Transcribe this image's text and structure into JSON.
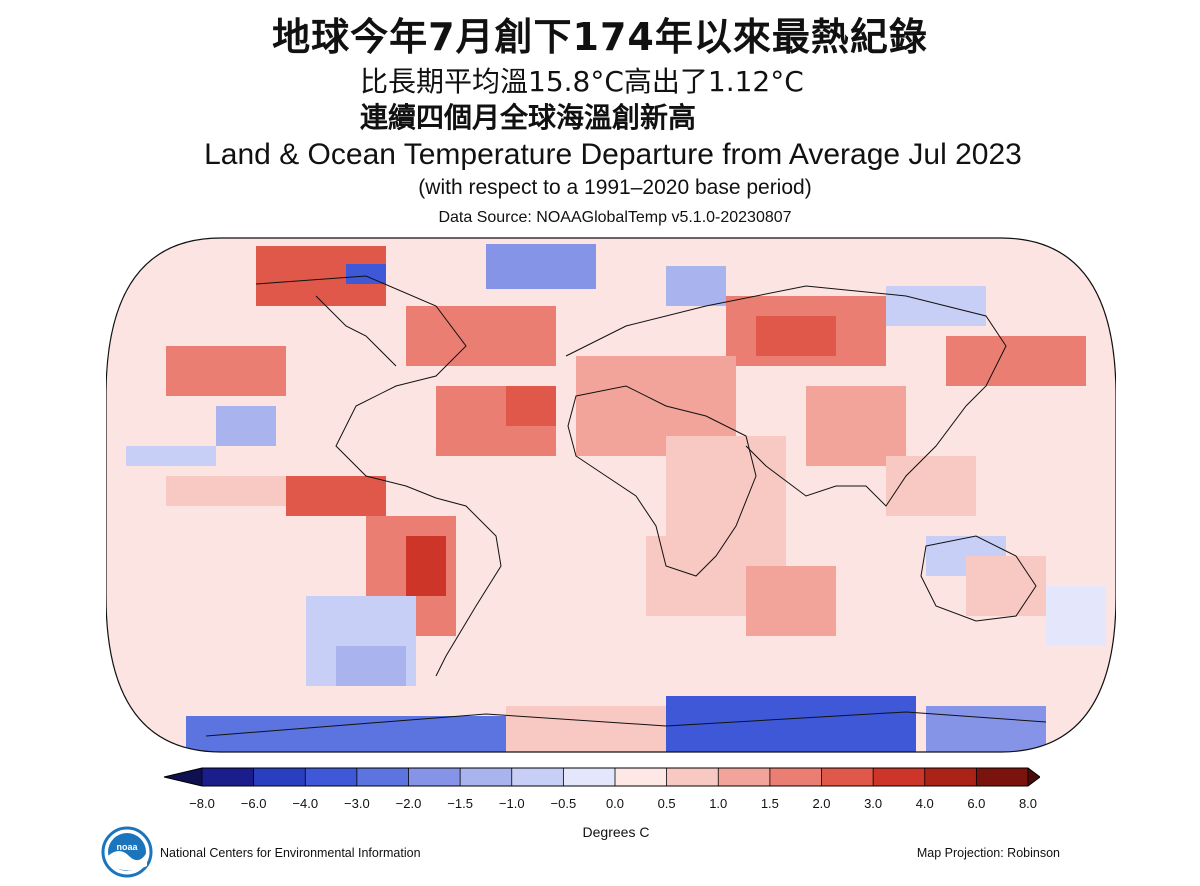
{
  "headline": {
    "title": "地球今年7月創下174年以來最熱紀錄",
    "subtitle1": "比長期平均溫15.8°C高出了1.12°C",
    "subtitle2": "連續四個月全球海溫創新高"
  },
  "map": {
    "title": "Land & Ocean Temperature Departure from Average Jul 2023",
    "base_period": "(with respect to a 1991–2020 base period)",
    "source": "Data Source: NOAAGlobalTemp v5.1.0-20230807",
    "projection": "Map Projection: Robinson",
    "agency": "National Centers for Environmental Information",
    "logo_text": "noaa",
    "colorbar": {
      "units": "Degrees C",
      "ticks": [
        "−8.0",
        "−6.0",
        "−4.0",
        "−3.0",
        "−2.0",
        "−1.5",
        "−1.0",
        "−0.5",
        "0.0",
        "0.5",
        "1.0",
        "1.5",
        "2.0",
        "3.0",
        "4.0",
        "6.0",
        "8.0"
      ],
      "colors": [
        "#1a1d8a",
        "#2a3fc0",
        "#3e58d8",
        "#5c74e0",
        "#8594e6",
        "#a9b4ef",
        "#c8cff7",
        "#e4e7fb",
        "#fde8e6",
        "#f8c9c3",
        "#f2a49a",
        "#eb7e72",
        "#e05849",
        "#cc3527",
        "#ab2217",
        "#7a130d"
      ],
      "low_cap_color": "#0e1050",
      "high_cap_color": "#4a0c08"
    }
  }
}
